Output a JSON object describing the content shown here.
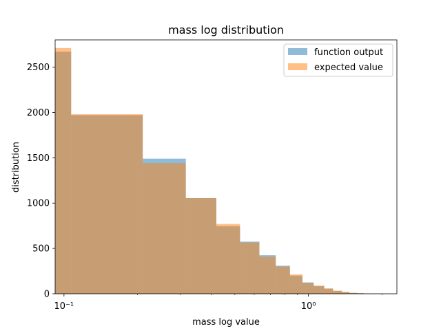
{
  "chart_data": {
    "type": "bar",
    "title": "mass log distribution",
    "xlabel": "mass log value",
    "ylabel": "distribution",
    "xscale": "log",
    "xlim": [
      0.092,
      2.3
    ],
    "ylim": [
      0,
      2800
    ],
    "x_ticks": [
      {
        "value": 0.1,
        "label": "10⁻¹"
      },
      {
        "value": 1.0,
        "label": "10⁰"
      }
    ],
    "y_ticks": [
      0,
      500,
      1000,
      1500,
      2000,
      2500
    ],
    "grid": false,
    "legend_position": "top-right",
    "bin_edges": [
      0.092,
      0.107,
      0.21,
      0.315,
      0.42,
      0.525,
      0.63,
      0.735,
      0.84,
      0.945,
      1.05,
      1.16,
      1.26,
      1.37,
      1.47,
      1.58,
      1.68,
      1.79,
      1.89,
      2.0
    ],
    "series": [
      {
        "name": "function output",
        "color": "#1f77b4",
        "opacity": 0.5,
        "values": [
          2670,
          1970,
          1490,
          1055,
          745,
          575,
          425,
          310,
          200,
          125,
          85,
          55,
          30,
          20,
          10,
          6,
          3,
          2,
          1
        ]
      },
      {
        "name": "expected value",
        "color": "#ff7f0e",
        "opacity": 0.5,
        "values": [
          2710,
          1980,
          1440,
          1055,
          770,
          565,
          410,
          300,
          215,
          120,
          90,
          60,
          35,
          20,
          10,
          6,
          3,
          2,
          1
        ]
      }
    ]
  }
}
